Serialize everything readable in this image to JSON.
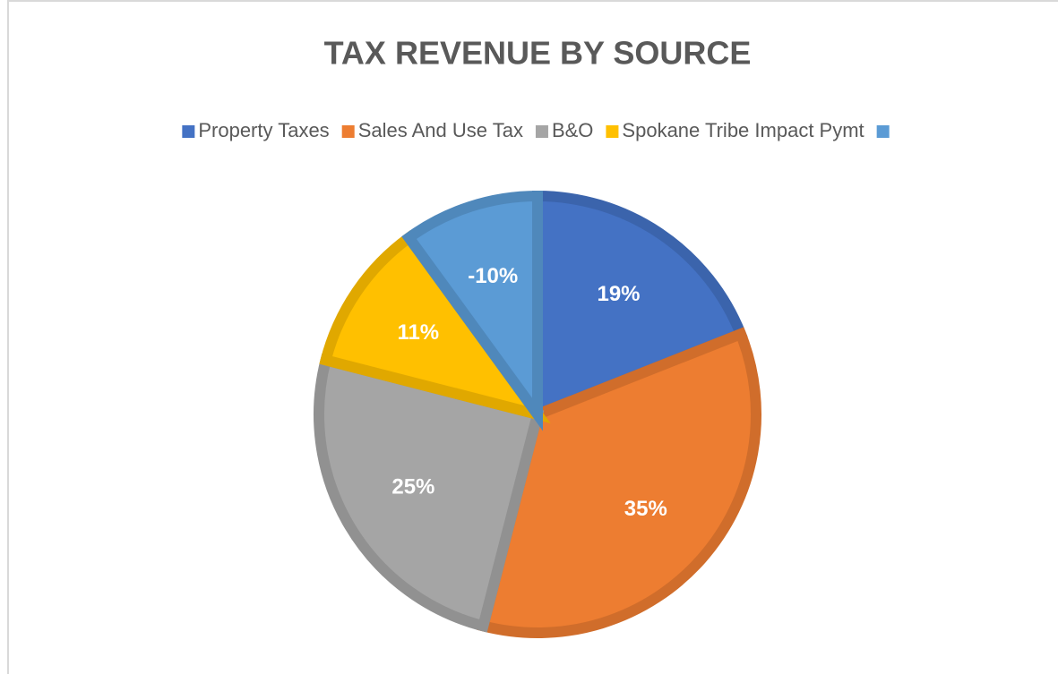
{
  "chart_data": {
    "type": "pie",
    "title": "TAX REVENUE BY SOURCE",
    "categories": [
      "Property Taxes",
      "Sales And Use Tax",
      "B&O",
      "Spokane Tribe Impact Pymt",
      null
    ],
    "values": [
      19,
      35,
      25,
      11,
      -10
    ],
    "value_labels": [
      "19%",
      "35%",
      "25%",
      "11%",
      "-10%"
    ],
    "colors": [
      "#4472c4",
      "#ed7d31",
      "#a5a5a5",
      "#ffc000",
      "#5b9bd5"
    ],
    "legend": "top"
  }
}
